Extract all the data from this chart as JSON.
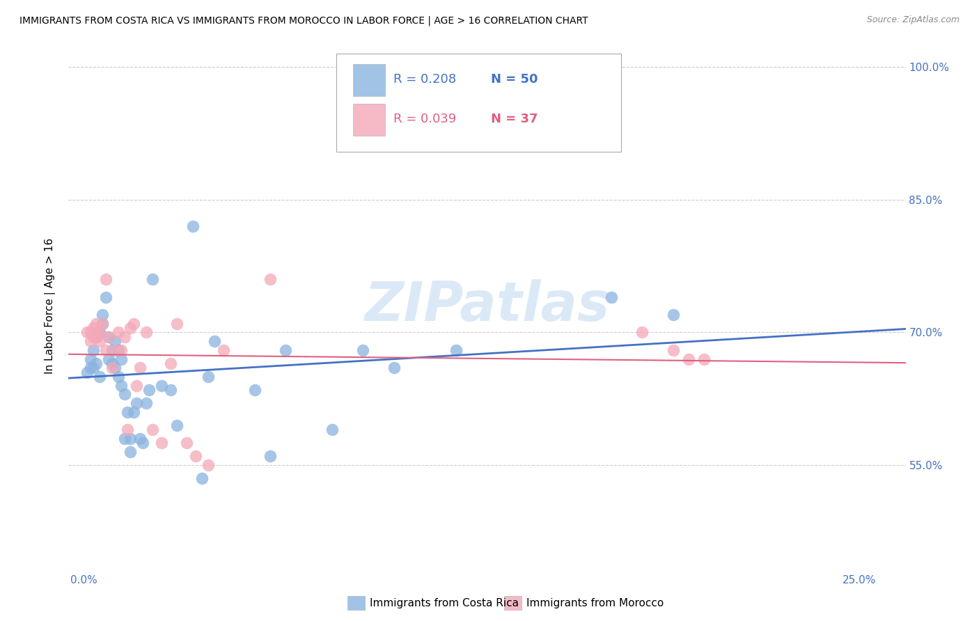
{
  "title": "IMMIGRANTS FROM COSTA RICA VS IMMIGRANTS FROM MOROCCO IN LABOR FORCE | AGE > 16 CORRELATION CHART",
  "source": "Source: ZipAtlas.com",
  "xlabel_ticks_show": [
    "0.0%",
    "25.0%"
  ],
  "xlabel_vals_show": [
    0.0,
    0.25
  ],
  "xlabel_vals_all": [
    0.0,
    0.05,
    0.1,
    0.15,
    0.2,
    0.25
  ],
  "ylabel": "In Labor Force | Age > 16",
  "ylabel_ticks": [
    "55.0%",
    "70.0%",
    "85.0%",
    "100.0%"
  ],
  "ylabel_vals": [
    0.55,
    0.7,
    0.85,
    1.0
  ],
  "ylim": [
    0.43,
    1.03
  ],
  "xlim": [
    -0.005,
    0.265
  ],
  "watermark": "ZIPatlas",
  "legend1_label": "Immigrants from Costa Rica",
  "legend2_label": "Immigrants from Morocco",
  "R1": "0.208",
  "N1": "50",
  "R2": "0.039",
  "N2": "37",
  "color1": "#8AB4E0",
  "color2": "#F4A8B8",
  "trendline1_color": "#4472C4",
  "trendline2_color": "#E06080",
  "costa_rica_x": [
    0.001,
    0.002,
    0.002,
    0.003,
    0.003,
    0.004,
    0.004,
    0.005,
    0.005,
    0.006,
    0.006,
    0.007,
    0.008,
    0.008,
    0.009,
    0.009,
    0.01,
    0.01,
    0.011,
    0.011,
    0.012,
    0.012,
    0.013,
    0.013,
    0.014,
    0.015,
    0.015,
    0.016,
    0.017,
    0.018,
    0.019,
    0.02,
    0.021,
    0.022,
    0.025,
    0.028,
    0.03,
    0.035,
    0.038,
    0.04,
    0.042,
    0.055,
    0.06,
    0.065,
    0.08,
    0.09,
    0.1,
    0.12,
    0.17,
    0.19
  ],
  "costa_rica_y": [
    0.655,
    0.66,
    0.67,
    0.68,
    0.66,
    0.665,
    0.695,
    0.65,
    0.7,
    0.72,
    0.71,
    0.74,
    0.695,
    0.67,
    0.665,
    0.68,
    0.69,
    0.66,
    0.68,
    0.65,
    0.67,
    0.64,
    0.63,
    0.58,
    0.61,
    0.58,
    0.565,
    0.61,
    0.62,
    0.58,
    0.575,
    0.62,
    0.635,
    0.76,
    0.64,
    0.635,
    0.595,
    0.82,
    0.535,
    0.65,
    0.69,
    0.635,
    0.56,
    0.68,
    0.59,
    0.68,
    0.66,
    0.68,
    0.74,
    0.72
  ],
  "morocco_x": [
    0.001,
    0.002,
    0.002,
    0.003,
    0.003,
    0.004,
    0.004,
    0.005,
    0.005,
    0.006,
    0.007,
    0.007,
    0.008,
    0.009,
    0.01,
    0.011,
    0.012,
    0.013,
    0.014,
    0.015,
    0.016,
    0.017,
    0.018,
    0.02,
    0.022,
    0.025,
    0.028,
    0.03,
    0.033,
    0.036,
    0.04,
    0.045,
    0.06,
    0.18,
    0.19,
    0.195,
    0.2
  ],
  "morocco_y": [
    0.7,
    0.69,
    0.7,
    0.695,
    0.705,
    0.71,
    0.695,
    0.69,
    0.7,
    0.71,
    0.76,
    0.68,
    0.695,
    0.66,
    0.68,
    0.7,
    0.68,
    0.695,
    0.59,
    0.705,
    0.71,
    0.64,
    0.66,
    0.7,
    0.59,
    0.575,
    0.665,
    0.71,
    0.575,
    0.56,
    0.55,
    0.68,
    0.76,
    0.7,
    0.68,
    0.67,
    0.67
  ]
}
